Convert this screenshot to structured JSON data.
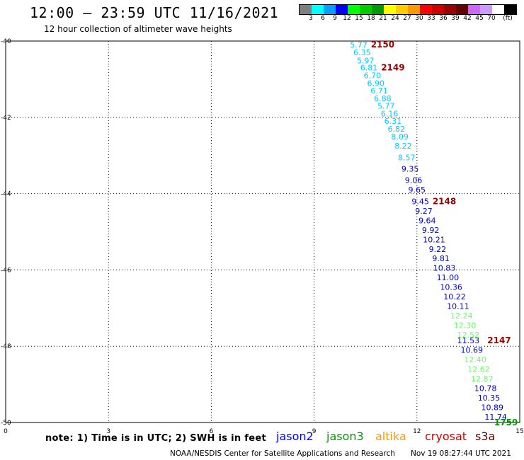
{
  "title": "12:00 — 23:59 UTC 11/16/2021",
  "subtitle": "12 hour collection of altimeter wave heights",
  "colorbar": {
    "colors": [
      "#7f7f7f",
      "#00ffff",
      "#00a0ff",
      "#0000ff",
      "#00ff00",
      "#00cc00",
      "#009900",
      "#ffff00",
      "#ffcc00",
      "#ff9900",
      "#ff0000",
      "#cc0000",
      "#990000",
      "#660000",
      "#cc66ff",
      "#cc99ff",
      "#ffffff",
      "#000000"
    ],
    "labels": [
      "3",
      "6",
      "9",
      "12",
      "15",
      "18",
      "21",
      "24",
      "27",
      "30",
      "33",
      "36",
      "39",
      "42",
      "45",
      "70",
      "(ft)"
    ]
  },
  "footer": {
    "note": "note: 1) Time is in UTC; 2) SWH is in feet",
    "legend": [
      {
        "name": "jason2",
        "color": "#0000ff"
      },
      {
        "name": "jason3",
        "color": "#009900"
      },
      {
        "name": "altika",
        "color": "#ff9900"
      },
      {
        "name": "cryosat",
        "color": "#cc0000"
      },
      {
        "name": "s3a",
        "color": "#660000"
      }
    ],
    "credit": "NOAA/NESDIS Center for Satellite Applications and Research",
    "stamp": "Nov 19 08:27:44 UTC 2021"
  },
  "chart_data": {
    "type": "scatter",
    "title": "12:00 — 23:59 UTC 11/16/2021",
    "subtitle": "12 hour collection of altimeter wave heights",
    "xlim": [
      0,
      15
    ],
    "ylim": [
      -50,
      -40
    ],
    "x_ticks": [
      "0",
      "3",
      "6",
      "9",
      "12",
      "15"
    ],
    "y_ticks": [
      "-40",
      "-42",
      "-44",
      "-46",
      "-48",
      "-50"
    ],
    "grid": true,
    "color_scale_unit": "(ft)",
    "series": [
      {
        "color": "#00ccff",
        "points": [
          {
            "x": 10.3,
            "y": -40.09,
            "label": "5.77"
          },
          {
            "x": 10.4,
            "y": -40.3,
            "label": "6.35"
          },
          {
            "x": 10.5,
            "y": -40.51,
            "label": "5.97"
          },
          {
            "x": 10.6,
            "y": -40.7,
            "label": "6.81"
          },
          {
            "x": 10.7,
            "y": -40.9,
            "label": "6.70"
          },
          {
            "x": 10.8,
            "y": -41.1,
            "label": "6.90"
          },
          {
            "x": 10.9,
            "y": -41.3,
            "label": "6.71"
          },
          {
            "x": 11.0,
            "y": -41.5,
            "label": "6.88"
          },
          {
            "x": 11.1,
            "y": -41.7,
            "label": "5.77"
          },
          {
            "x": 11.2,
            "y": -41.9,
            "label": "6.16"
          },
          {
            "x": 11.3,
            "y": -42.1,
            "label": "6.31"
          },
          {
            "x": 11.4,
            "y": -42.3,
            "label": "6.82"
          },
          {
            "x": 11.5,
            "y": -42.5,
            "label": "8.09"
          },
          {
            "x": 11.6,
            "y": -42.75,
            "label": "8.22"
          },
          {
            "x": 11.7,
            "y": -43.05,
            "label": "8.57"
          }
        ]
      },
      {
        "color": "#0000cc",
        "points": [
          {
            "x": 11.8,
            "y": -43.35,
            "label": "9.35"
          },
          {
            "x": 11.9,
            "y": -43.65,
            "label": "9.06"
          },
          {
            "x": 12.0,
            "y": -43.9,
            "label": "9.65"
          },
          {
            "x": 12.1,
            "y": -44.2,
            "label": "9.45"
          },
          {
            "x": 12.2,
            "y": -44.45,
            "label": "9.27"
          },
          {
            "x": 12.3,
            "y": -44.7,
            "label": "9.64"
          },
          {
            "x": 12.4,
            "y": -44.95,
            "label": "9.92"
          },
          {
            "x": 12.5,
            "y": -45.2,
            "label": "10.21"
          },
          {
            "x": 12.6,
            "y": -45.45,
            "label": "9.22"
          },
          {
            "x": 12.7,
            "y": -45.7,
            "label": "9.81"
          },
          {
            "x": 12.8,
            "y": -45.95,
            "label": "10.83"
          },
          {
            "x": 12.9,
            "y": -46.2,
            "label": "11.00"
          },
          {
            "x": 13.0,
            "y": -46.45,
            "label": "10.36"
          },
          {
            "x": 13.1,
            "y": -46.7,
            "label": "10.22"
          },
          {
            "x": 13.2,
            "y": -46.95,
            "label": "10.11"
          }
        ]
      },
      {
        "color": "#66ff66",
        "points": [
          {
            "x": 13.3,
            "y": -47.2,
            "label": "12.24"
          },
          {
            "x": 13.4,
            "y": -47.45,
            "label": "12.30"
          },
          {
            "x": 13.5,
            "y": -47.7,
            "label": "12.52"
          }
        ]
      },
      {
        "color": "#0000cc",
        "points": [
          {
            "x": 13.5,
            "y": -47.85,
            "label": "11.53"
          },
          {
            "x": 13.6,
            "y": -48.1,
            "label": "10.69"
          }
        ]
      },
      {
        "color": "#66ff66",
        "points": [
          {
            "x": 13.7,
            "y": -48.35,
            "label": "12.40"
          },
          {
            "x": 13.8,
            "y": -48.6,
            "label": "12.62"
          },
          {
            "x": 13.9,
            "y": -48.85,
            "label": "12.87"
          }
        ]
      },
      {
        "color": "#0000cc",
        "points": [
          {
            "x": 14.0,
            "y": -49.1,
            "label": "10.78"
          },
          {
            "x": 14.1,
            "y": -49.35,
            "label": "10.35"
          },
          {
            "x": 14.2,
            "y": -49.6,
            "label": "10.89"
          },
          {
            "x": 14.3,
            "y": -49.85,
            "label": "11.74"
          }
        ]
      }
    ],
    "pass_labels": [
      {
        "x": 11.0,
        "y": -40.09,
        "label": "2150",
        "color": "#990000"
      },
      {
        "x": 11.3,
        "y": -40.7,
        "label": "2149",
        "color": "#990000"
      },
      {
        "x": 12.8,
        "y": -44.2,
        "label": "2148",
        "color": "#990000"
      },
      {
        "x": 14.4,
        "y": -47.85,
        "label": "2147",
        "color": "#990000"
      },
      {
        "x": 14.6,
        "y": -50.0,
        "label": "1759",
        "color": "#009900"
      }
    ]
  }
}
